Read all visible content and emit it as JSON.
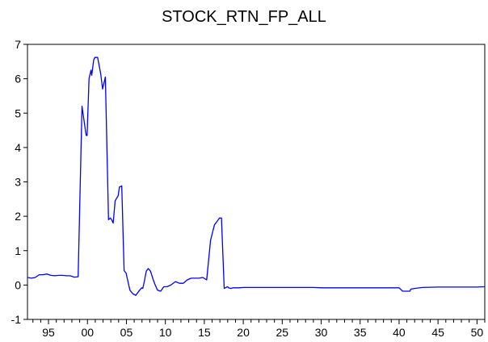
{
  "chart_data": {
    "type": "line",
    "title": "STOCK_RTN_FP_ALL",
    "xlabel": "",
    "ylabel": "",
    "ylim": [
      -1,
      7
    ],
    "xlim": [
      1992.3,
      2051.0
    ],
    "grid": false,
    "legend": "none",
    "y_ticks": [
      -1,
      0,
      1,
      2,
      3,
      4,
      5,
      6,
      7
    ],
    "x_ticks": [
      {
        "year": 1995,
        "label": "95"
      },
      {
        "year": 2000,
        "label": "00"
      },
      {
        "year": 2005,
        "label": "05"
      },
      {
        "year": 2010,
        "label": "10"
      },
      {
        "year": 2015,
        "label": "15"
      },
      {
        "year": 2020,
        "label": "20"
      },
      {
        "year": 2025,
        "label": "25"
      },
      {
        "year": 2030,
        "label": "30"
      },
      {
        "year": 2035,
        "label": "35"
      },
      {
        "year": 2040,
        "label": "40"
      },
      {
        "year": 2045,
        "label": "45"
      },
      {
        "year": 2050,
        "label": "50"
      }
    ],
    "line_color": "#0000ff",
    "series": [
      {
        "x": [
          1992.3,
          1992.8,
          1993.3,
          1993.8,
          1994.3,
          1994.8,
          1995.3,
          1995.8,
          1996.3,
          1996.8,
          1997.3,
          1997.8,
          1998.3,
          1998.8,
          1999.3,
          1999.8,
          1999.85,
          1999.95,
          2000.2,
          2000.45,
          2000.55,
          2000.8,
          2000.95,
          2001.3,
          2001.7,
          2001.95,
          2002.3,
          2002.7,
          2002.95,
          2003.1,
          2003.3,
          2003.55,
          2003.95,
          2004.1,
          2004.4,
          2004.7,
          2004.95,
          2005.2,
          2005.45,
          2005.8,
          2006.2,
          2006.7,
          2006.95,
          2007.1,
          2007.3,
          2007.55,
          2007.8,
          2008.1,
          2008.45,
          2008.7,
          2009.0,
          2009.4,
          2009.8,
          2010.2,
          2010.7,
          2011.3,
          2011.8,
          2012.3,
          2012.8,
          2013.3,
          2013.8,
          2014.3,
          2014.8,
          2015.3,
          2015.8,
          2016.3,
          2016.8,
          2016.95,
          2017.2,
          2017.55,
          2017.95,
          2018.0,
          2018.1,
          2018.4,
          2018.7,
          2019.0,
          2019.5,
          2020.0,
          2021.0,
          2025.0,
          2029.0,
          2030.0,
          2033.0,
          2035.0,
          2040.0,
          2040.45,
          2041.0,
          2041.4,
          2041.5,
          2042.0,
          2043.0,
          2045.0,
          2047.0,
          2050.0,
          2051.0
        ],
        "y": [
          0.22,
          0.2,
          0.22,
          0.3,
          0.3,
          0.32,
          0.28,
          0.27,
          0.28,
          0.28,
          0.27,
          0.27,
          0.23,
          0.24,
          5.2,
          4.4,
          4.35,
          4.35,
          6.0,
          6.25,
          6.1,
          6.55,
          6.62,
          6.62,
          6.15,
          5.7,
          6.05,
          1.9,
          1.95,
          1.9,
          1.8,
          2.45,
          2.6,
          2.85,
          2.88,
          0.42,
          0.35,
          0.1,
          -0.15,
          -0.25,
          -0.3,
          -0.15,
          -0.08,
          -0.1,
          0.1,
          0.4,
          0.48,
          0.4,
          0.15,
          0.0,
          -0.15,
          -0.18,
          -0.05,
          -0.05,
          0.0,
          0.1,
          0.05,
          0.05,
          0.15,
          0.2,
          0.2,
          0.2,
          0.22,
          0.15,
          1.3,
          1.75,
          1.9,
          1.95,
          1.95,
          -0.1,
          -0.05,
          -0.05,
          -0.08,
          -0.1,
          -0.08,
          -0.08,
          -0.08,
          -0.07,
          -0.07,
          -0.07,
          -0.07,
          -0.08,
          -0.08,
          -0.08,
          -0.08,
          -0.18,
          -0.18,
          -0.18,
          -0.12,
          -0.1,
          -0.07,
          -0.06,
          -0.06,
          -0.06,
          -0.05
        ]
      }
    ]
  }
}
